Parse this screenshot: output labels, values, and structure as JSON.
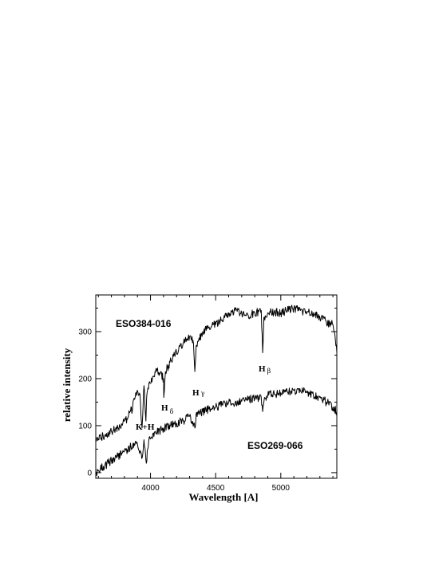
{
  "chart_data": {
    "type": "line",
    "xlabel": "Wavelength [A]",
    "ylabel": "relative intensity",
    "xlim": [
      3580,
      5430
    ],
    "ylim": [
      -12,
      378
    ],
    "xticks": [
      4000,
      4500,
      5000
    ],
    "yticks": [
      0,
      100,
      200,
      300
    ],
    "grid": false,
    "series": [
      {
        "name": "ESO384-016",
        "x": [
          3580,
          3600,
          3650,
          3700,
          3750,
          3800,
          3820,
          3850,
          3860,
          3870,
          3890,
          3900,
          3920,
          3930,
          3935,
          3950,
          3965,
          3970,
          3980,
          4000,
          4050,
          4100,
          4102,
          4115,
          4150,
          4200,
          4250,
          4300,
          4330,
          4340,
          4350,
          4400,
          4450,
          4500,
          4550,
          4600,
          4650,
          4700,
          4750,
          4800,
          4850,
          4861,
          4870,
          4900,
          4950,
          5000,
          5050,
          5100,
          5150,
          5200,
          5250,
          5300,
          5350,
          5400,
          5430
        ],
        "y": [
          70,
          72,
          80,
          88,
          95,
          110,
          115,
          140,
          130,
          155,
          170,
          175,
          165,
          110,
          95,
          185,
          110,
          160,
          180,
          190,
          220,
          200,
          160,
          215,
          235,
          255,
          275,
          290,
          275,
          215,
          270,
          300,
          310,
          315,
          325,
          340,
          345,
          340,
          335,
          340,
          345,
          255,
          330,
          340,
          342,
          340,
          345,
          350,
          345,
          340,
          340,
          330,
          320,
          315,
          255
        ]
      },
      {
        "name": "ESO269-066",
        "x": [
          3580,
          3600,
          3650,
          3700,
          3750,
          3800,
          3850,
          3900,
          3933,
          3950,
          3968,
          3990,
          4050,
          4100,
          4150,
          4200,
          4250,
          4300,
          4340,
          4350,
          4400,
          4450,
          4500,
          4550,
          4600,
          4650,
          4700,
          4750,
          4800,
          4850,
          4861,
          4875,
          4900,
          4950,
          5000,
          5050,
          5100,
          5150,
          5200,
          5250,
          5300,
          5350,
          5400,
          5430
        ],
        "y": [
          0,
          5,
          15,
          25,
          35,
          45,
          55,
          60,
          30,
          70,
          20,
          75,
          85,
          95,
          100,
          105,
          110,
          120,
          95,
          125,
          130,
          135,
          140,
          145,
          148,
          150,
          152,
          155,
          158,
          160,
          130,
          160,
          165,
          168,
          170,
          172,
          175,
          175,
          170,
          165,
          160,
          150,
          140,
          130
        ]
      }
    ]
  },
  "annotations": {
    "eso384": "ESO384-016",
    "eso269": "ESO269-066",
    "kh": "K+H",
    "h_letter": "H",
    "delta": "δ",
    "gamma": "γ",
    "beta": "β"
  }
}
